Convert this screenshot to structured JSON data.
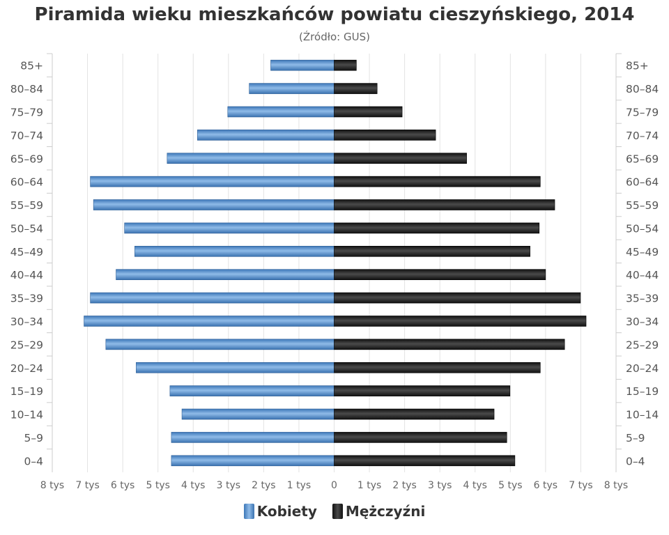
{
  "chart_data": {
    "type": "bar",
    "title": "Piramida wieku mieszkańców powiatu cieszyńskiego, 2014",
    "subtitle": "(Źródło: GUS)",
    "categories": [
      "0–4",
      "5–9",
      "10–14",
      "15–19",
      "20–24",
      "25–29",
      "30–34",
      "35–39",
      "40–44",
      "45–49",
      "50–54",
      "55–59",
      "60–64",
      "65–69",
      "70–74",
      "75–79",
      "80–84",
      "85+"
    ],
    "series": [
      {
        "name": "Kobiety",
        "color": "#4a86c6",
        "values": [
          4620,
          4620,
          4320,
          4660,
          5620,
          6480,
          7100,
          6920,
          6190,
          5660,
          5950,
          6830,
          6920,
          4740,
          3880,
          3020,
          2410,
          1800
        ]
      },
      {
        "name": "Mężczyźni",
        "color": "#1a1a1a",
        "values": [
          5130,
          4900,
          4540,
          4990,
          5850,
          6540,
          7150,
          6990,
          6000,
          5560,
          5820,
          6260,
          5850,
          3760,
          2880,
          1930,
          1220,
          630
        ]
      }
    ],
    "xlim": [
      -8000,
      8000
    ],
    "x_ticks": [
      {
        "value": -8000,
        "label": "8 tys"
      },
      {
        "value": -7000,
        "label": "7 tys"
      },
      {
        "value": -6000,
        "label": "6 tys"
      },
      {
        "value": -5000,
        "label": "5 tys"
      },
      {
        "value": -4000,
        "label": "4 tys"
      },
      {
        "value": -3000,
        "label": "3 tys"
      },
      {
        "value": -2000,
        "label": "2 tys"
      },
      {
        "value": -1000,
        "label": "1 tys"
      },
      {
        "value": 0,
        "label": "0"
      },
      {
        "value": 1000,
        "label": "1 tys"
      },
      {
        "value": 2000,
        "label": "2 tys"
      },
      {
        "value": 3000,
        "label": "3 tys"
      },
      {
        "value": 4000,
        "label": "4 tys"
      },
      {
        "value": 5000,
        "label": "5 tys"
      },
      {
        "value": 6000,
        "label": "6 tys"
      },
      {
        "value": 7000,
        "label": "7 tys"
      },
      {
        "value": 8000,
        "label": "8 tys"
      }
    ],
    "grid": true,
    "legend_position": "bottom-center"
  }
}
